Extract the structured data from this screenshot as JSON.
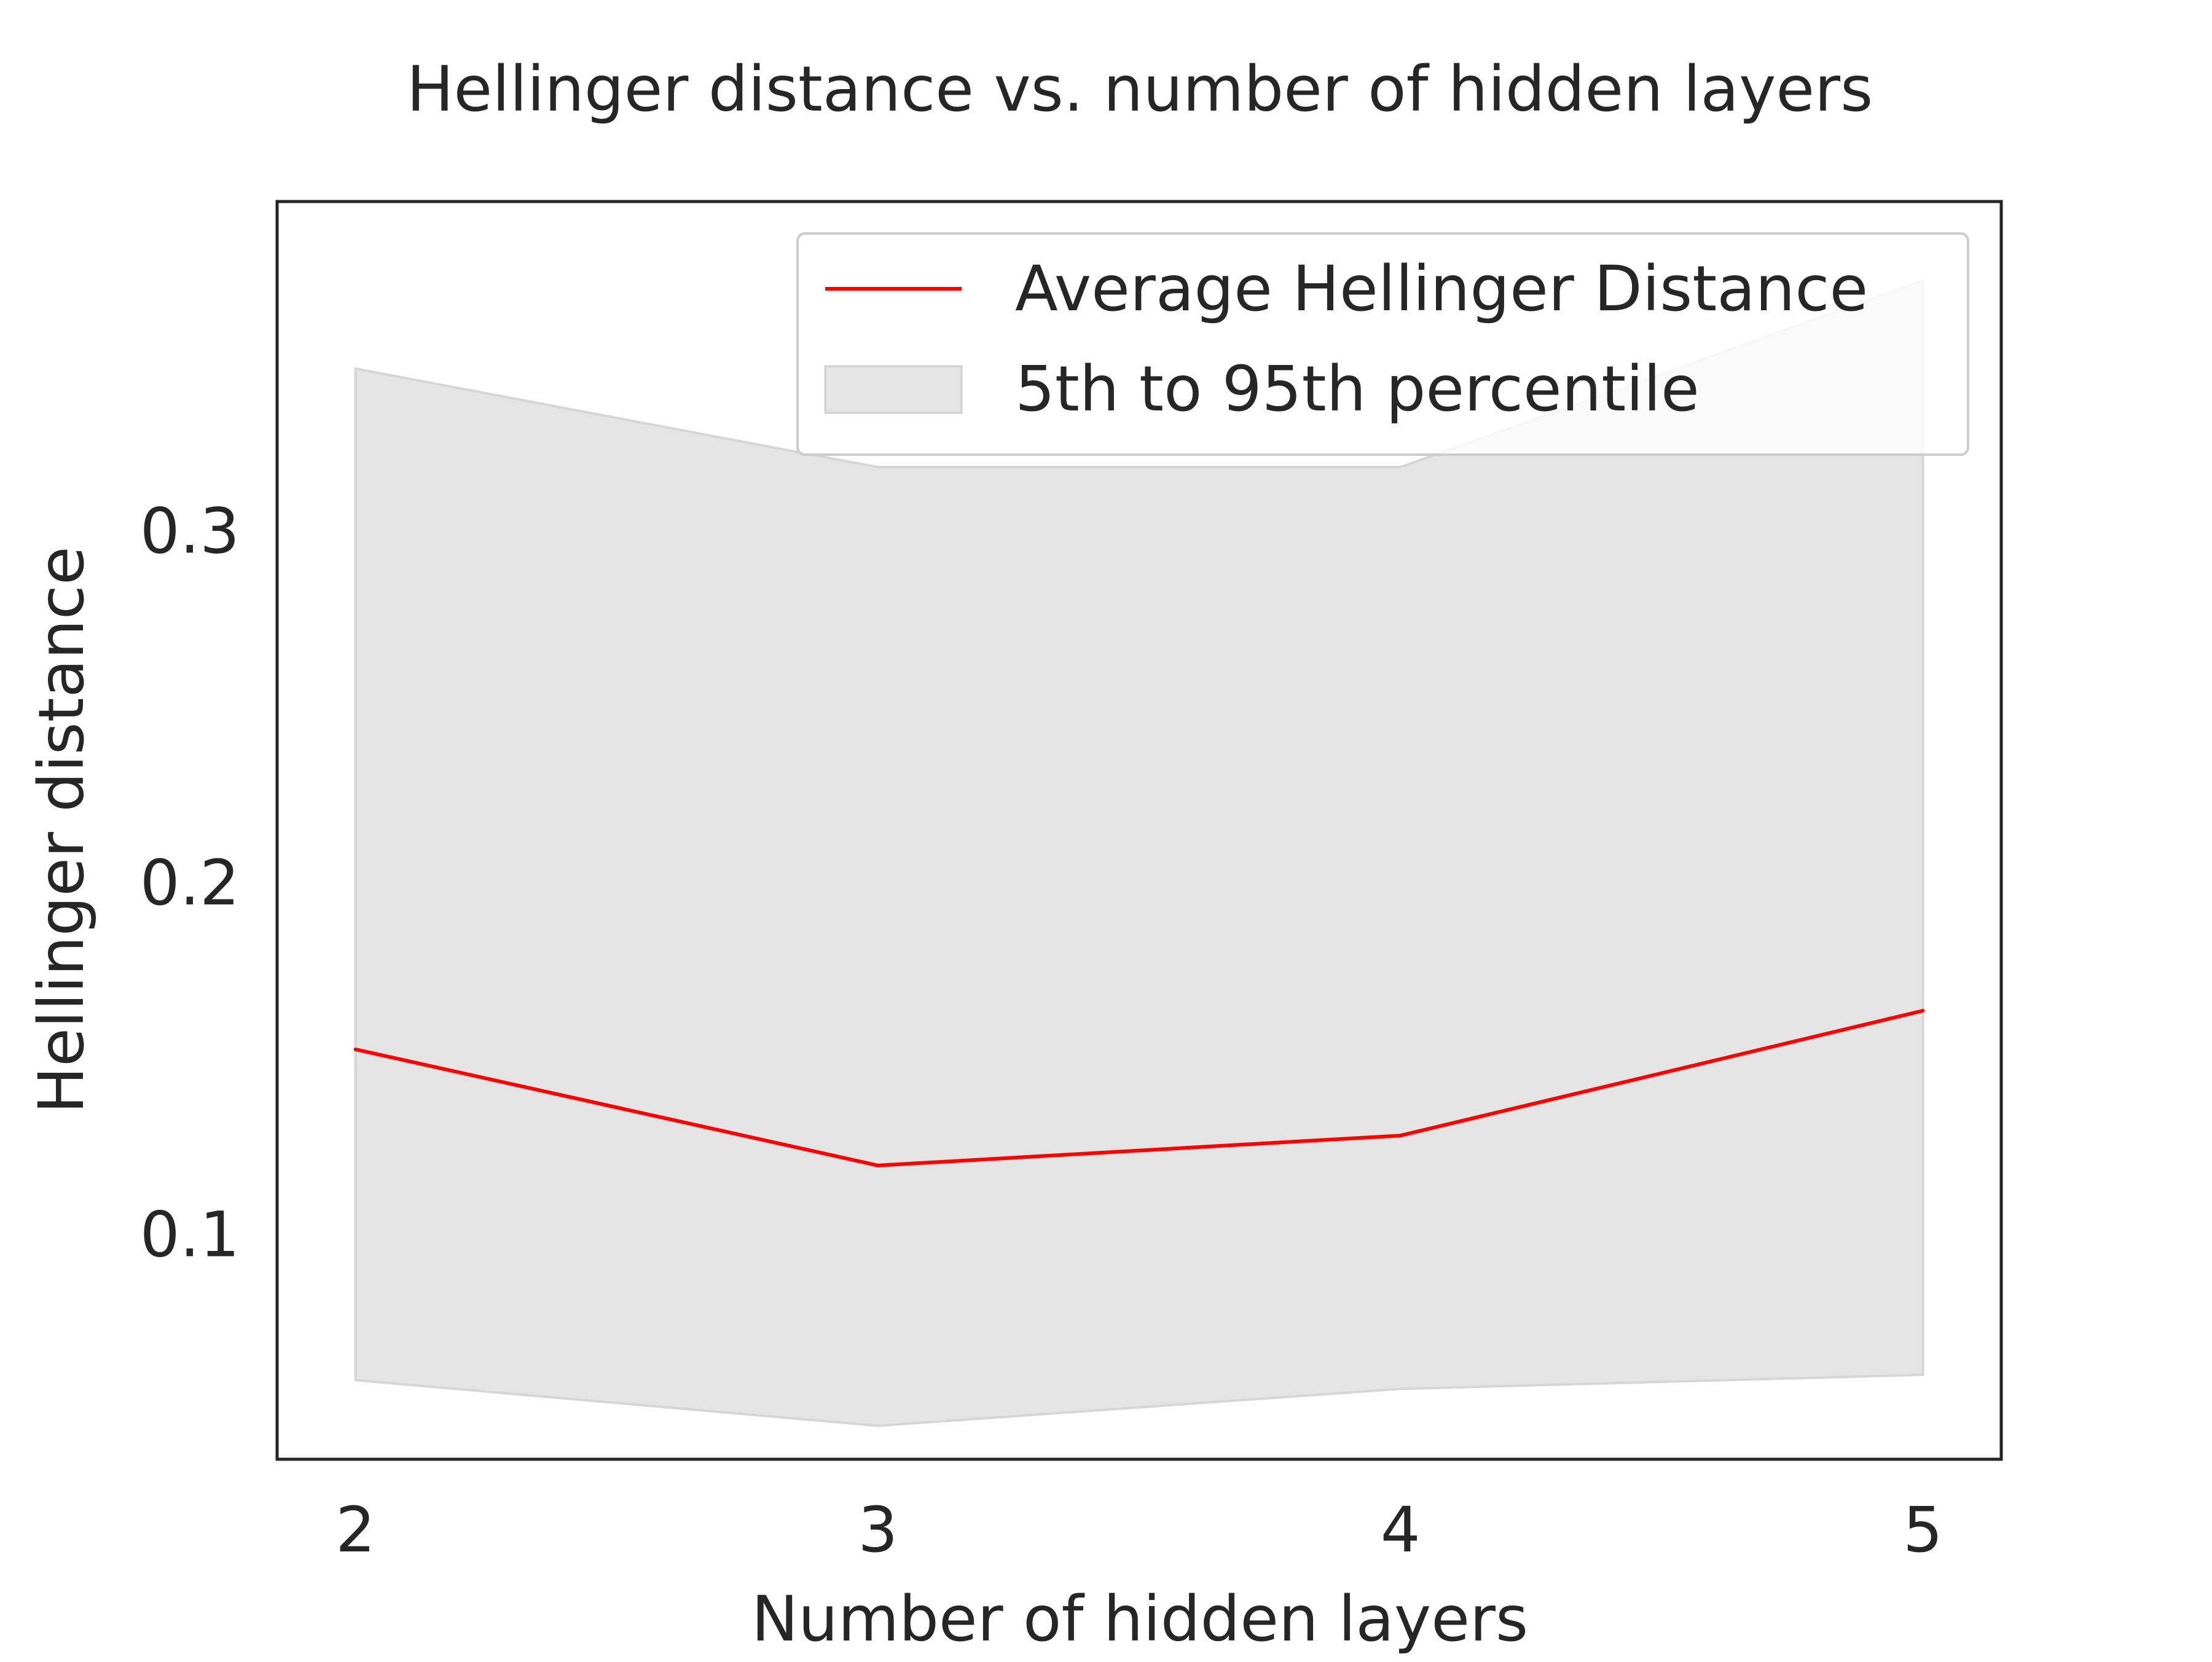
{
  "chart_data": {
    "type": "line",
    "title": "Hellinger distance vs. number of hidden layers",
    "xlabel": "Number of hidden layers",
    "ylabel": "Hellinger distance",
    "x": [
      2,
      3,
      4,
      5
    ],
    "xticks": [
      "2",
      "3",
      "4",
      "5"
    ],
    "yticks": [
      "0.1",
      "0.2",
      "0.3"
    ],
    "ytick_values": [
      0.1,
      0.2,
      0.3
    ],
    "xlim": [
      1.85,
      5.15
    ],
    "ylim": [
      0.036,
      0.3935
    ],
    "series": [
      {
        "name": "Average Hellinger Distance",
        "kind": "line",
        "color": "#ff0000",
        "values": [
          0.1525,
          0.1195,
          0.128,
          0.1635
        ]
      },
      {
        "name": "5th to 95th percentile",
        "kind": "band",
        "color": "#e4e4e4",
        "lower": [
          0.0585,
          0.0455,
          0.056,
          0.06
        ],
        "upper": [
          0.346,
          0.318,
          0.318,
          0.371
        ]
      }
    ],
    "legend": {
      "position": "upper right",
      "entries": [
        "Average Hellinger Distance",
        "5th to 95th percentile"
      ]
    },
    "grid": false
  }
}
